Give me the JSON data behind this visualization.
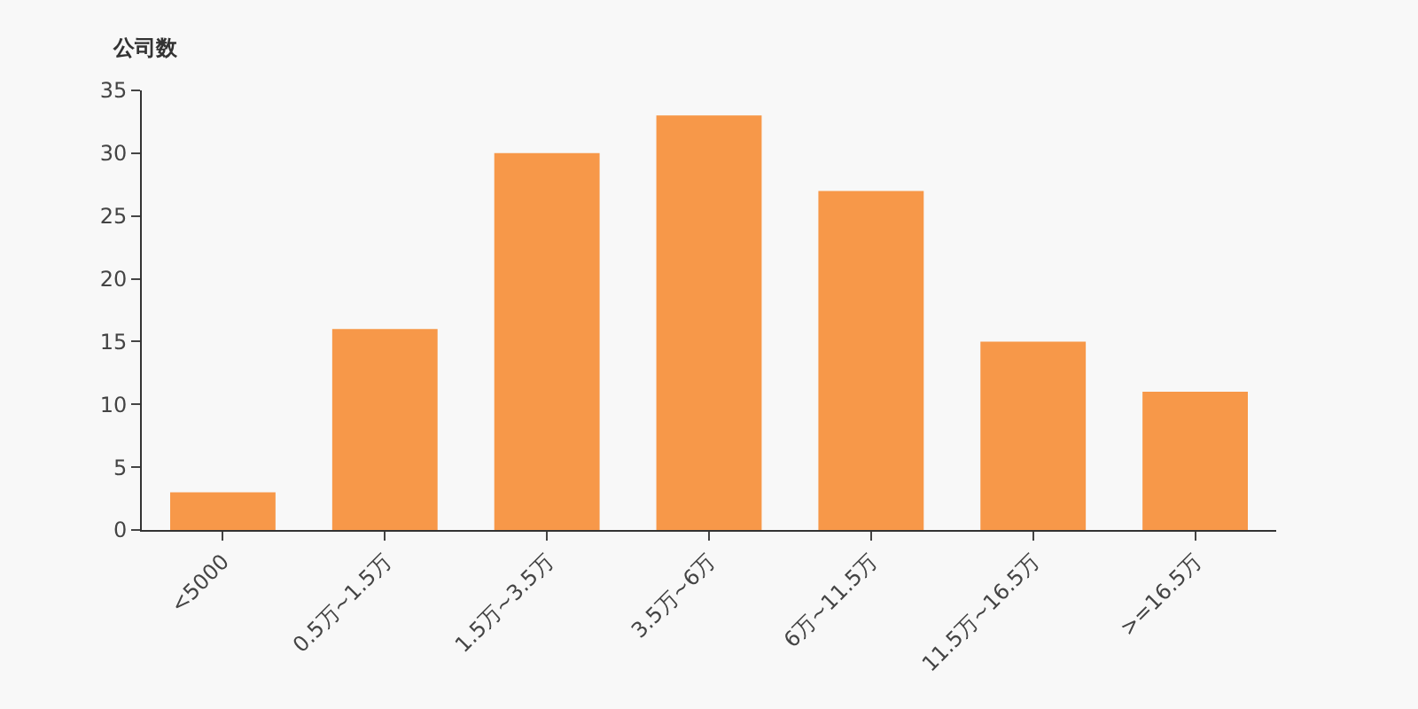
{
  "chart_data": {
    "type": "bar",
    "ylabel": "公司数",
    "categories": [
      "<5000",
      "0.5万~1.5万",
      "1.5万~3.5万",
      "3.5万~6万",
      "6万~11.5万",
      "11.5万~16.5万",
      ">=16.5万"
    ],
    "values": [
      3,
      16,
      30,
      33,
      27,
      15,
      11
    ],
    "color": "#f79849",
    "ylim": [
      0,
      35
    ],
    "yticks": [
      0,
      5,
      10,
      15,
      20,
      25,
      30,
      35
    ],
    "grid": false
  }
}
